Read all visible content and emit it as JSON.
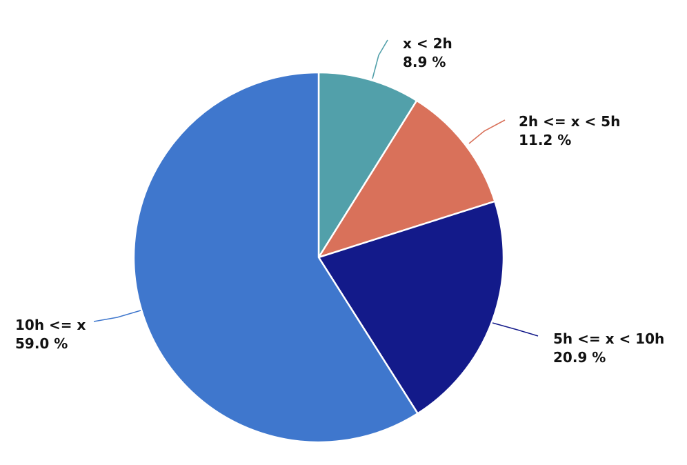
{
  "chart_data": {
    "type": "pie",
    "title": "",
    "start_angle_deg": 0,
    "direction": "clockwise",
    "slices": [
      {
        "label": "x < 2h",
        "value": 8.9,
        "value_label": "8.9 %",
        "color": "#52a0aa"
      },
      {
        "label": "2h <= x < 5h",
        "value": 11.2,
        "value_label": "11.2 %",
        "color": "#d9715a"
      },
      {
        "label": "5h <= x < 10h",
        "value": 20.9,
        "value_label": "20.9 %",
        "color": "#131a8a"
      },
      {
        "label": "10h <= x",
        "value": 59.0,
        "value_label": "59.0 %",
        "color": "#3f77cd"
      }
    ]
  }
}
